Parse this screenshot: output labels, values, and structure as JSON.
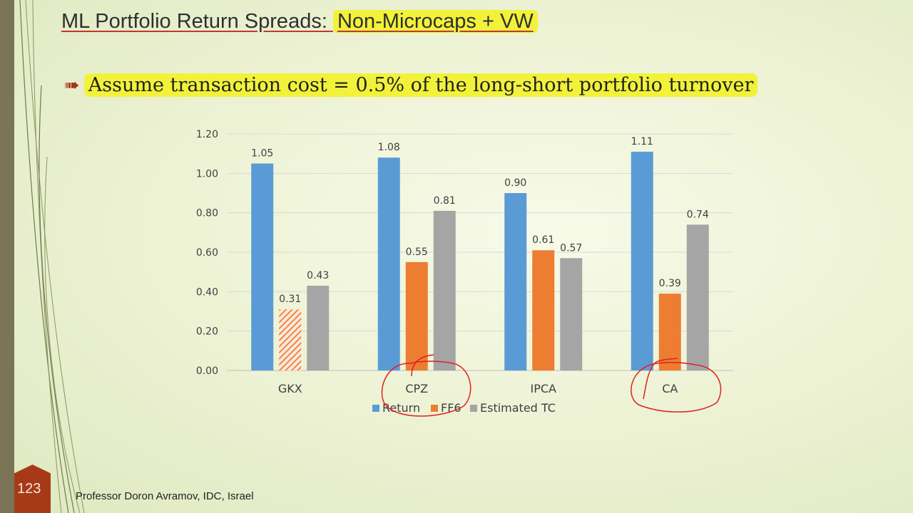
{
  "slide": {
    "title_plain": "ML Portfolio Return Spreads: ",
    "title_highlight": "Non-Microcaps + VW",
    "bullet": "Assume transaction cost = 0.5% of the long-short portfolio turnover",
    "page_number": "123",
    "footer": "Professor Doron Avramov, IDC, Israel"
  },
  "chart_data": {
    "type": "bar",
    "categories": [
      "GKX",
      "CPZ",
      "IPCA",
      "CA"
    ],
    "series": [
      {
        "name": "Return",
        "color": "#5b9bd5",
        "values": [
          1.05,
          1.08,
          0.9,
          1.11
        ],
        "labels": [
          "1.05",
          "1.08",
          "0.90",
          "1.11"
        ]
      },
      {
        "name": "FF6",
        "color": "#ed7d31",
        "values": [
          0.31,
          0.55,
          0.61,
          0.39
        ],
        "labels": [
          "0.31",
          "0.55",
          "0.61",
          "0.39"
        ]
      },
      {
        "name": "Estimated TC",
        "color": "#a5a5a5",
        "values": [
          0.43,
          0.81,
          0.57,
          0.74
        ],
        "labels": [
          "0.43",
          "0.81",
          "0.57",
          "0.74"
        ]
      }
    ],
    "hatched": [
      {
        "series": 1,
        "category": 0
      }
    ],
    "yticks": [
      "0.00",
      "0.20",
      "0.40",
      "0.60",
      "0.80",
      "1.00",
      "1.20"
    ],
    "ylim": [
      0,
      1.2
    ],
    "grid": true,
    "legend_position": "bottom",
    "annotations": [
      "red-circle-CPZ",
      "red-circle-CA"
    ]
  }
}
